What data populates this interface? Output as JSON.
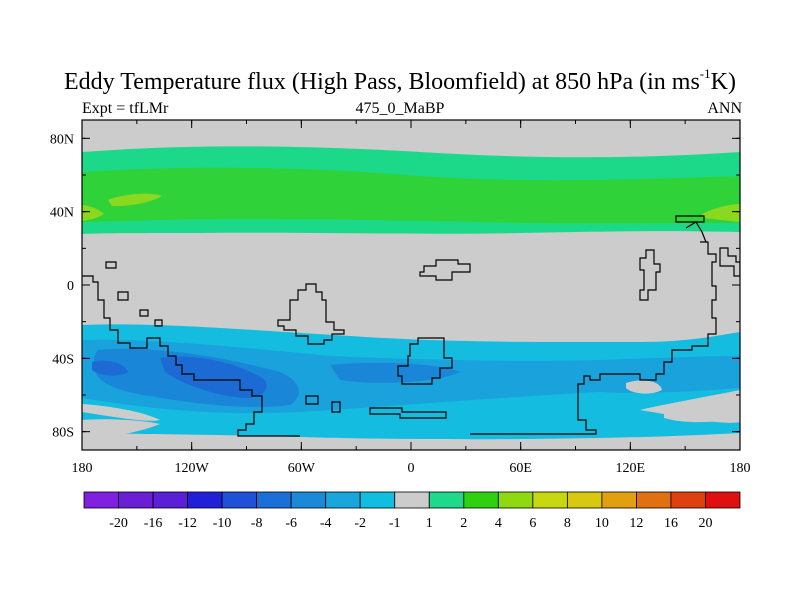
{
  "title": {
    "main": "Eddy Temperature flux (High Pass, Bloomfield) at 850 hPa (in ms",
    "sup": "-1",
    "tail": "K)"
  },
  "subtitle": {
    "left": "Expt = tfLMr",
    "center": "475_0_MaBP",
    "right": "ANN"
  },
  "axes": {
    "y_ticks": [
      "80N",
      "40N",
      "0",
      "40S",
      "80S"
    ],
    "x_ticks": [
      "180",
      "120W",
      "60W",
      "0",
      "60E",
      "120E",
      "180"
    ]
  },
  "colorbar": {
    "labels": [
      "-20",
      "-16",
      "-12",
      "-10",
      "-8",
      "-6",
      "-4",
      "-2",
      "-1",
      "1",
      "2",
      "4",
      "6",
      "8",
      "10",
      "12",
      "16",
      "20"
    ],
    "colors": [
      "#8020e0",
      "#6a1fd6",
      "#5a1fd6",
      "#2020d8",
      "#1f50d8",
      "#1a70d8",
      "#1a8ad8",
      "#18a6dc",
      "#10bfdf",
      "#cccccc",
      "#1ed98c",
      "#2ed010",
      "#90d810",
      "#c8d810",
      "#d8c810",
      "#e0a010",
      "#e07010",
      "#e04010",
      "#e01010"
    ]
  },
  "palette": {
    "background": "#cccccc",
    "green_light": "#30d23a",
    "green_teal": "#1cd98a",
    "yellow_green": "#8ad820",
    "blue_1": "#14bce0",
    "blue_2": "#1aa2dc",
    "blue_3": "#1a86d8",
    "blue_4": "#1c6ad4",
    "coast": "#000000"
  }
}
